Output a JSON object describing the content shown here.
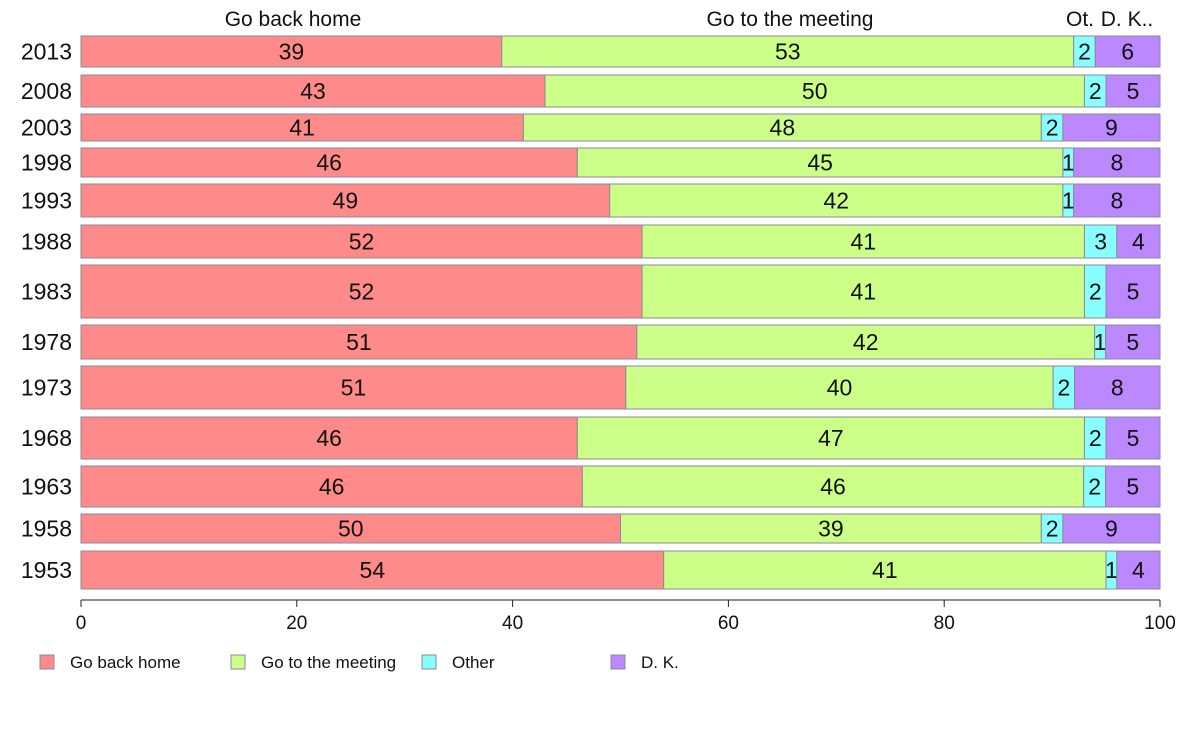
{
  "chart_data": {
    "type": "bar",
    "orientation": "horizontal",
    "stacked": true,
    "categories": [
      "2013",
      "2008",
      "2003",
      "1998",
      "1993",
      "1988",
      "1983",
      "1978",
      "1973",
      "1968",
      "1963",
      "1958",
      "1953"
    ],
    "series": [
      {
        "name": "Go back home",
        "color": "#ff8a8a",
        "values": [
          39,
          43,
          41,
          46,
          49,
          52,
          52,
          51,
          51,
          46,
          46,
          50,
          54
        ]
      },
      {
        "name": "Go to the meeting",
        "color": "#ccff88",
        "values": [
          53,
          50,
          48,
          45,
          42,
          41,
          41,
          42,
          40,
          47,
          46,
          39,
          41
        ]
      },
      {
        "name": "Other",
        "color": "#88ffff",
        "values": [
          2,
          2,
          2,
          1,
          1,
          3,
          2,
          1,
          2,
          2,
          2,
          2,
          1
        ]
      },
      {
        "name": "D. K.",
        "color": "#bb88ff",
        "values": [
          6,
          5,
          9,
          8,
          8,
          4,
          5,
          5,
          8,
          5,
          5,
          9,
          4
        ]
      }
    ],
    "column_headers": [
      "Go back home",
      "Go to the meeting",
      "Ot.",
      "D. K.."
    ],
    "xlim": [
      0,
      100
    ],
    "xticks": [
      0,
      20,
      40,
      60,
      80,
      100
    ],
    "grid": false,
    "legend_position": "bottom-left"
  }
}
